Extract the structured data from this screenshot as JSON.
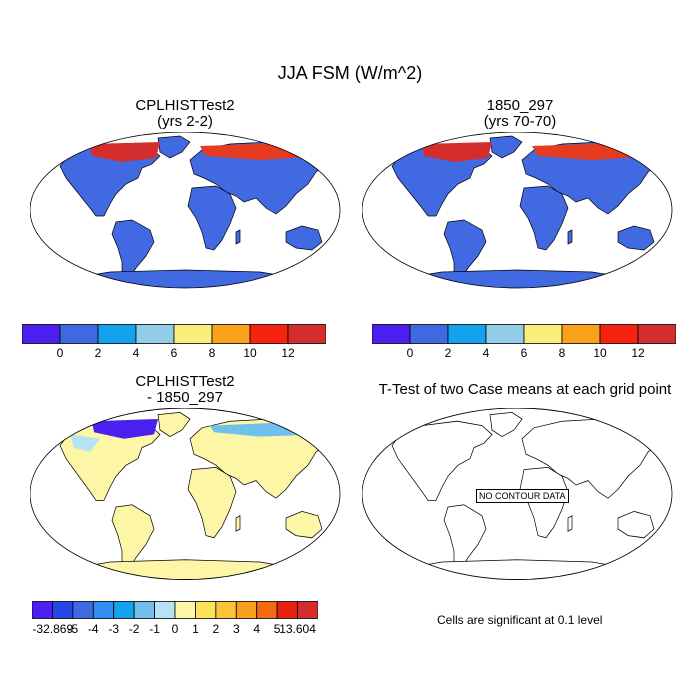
{
  "title": "JJA FSM (W/m^2)",
  "panels": [
    {
      "title_line1": "CPLHISTTest2",
      "title_line2": "(yrs 2-2)",
      "fill": "#4169e1"
    },
    {
      "title_line1": "1850_297",
      "title_line2": "(yrs 70-70)",
      "fill": "#4169e1"
    },
    {
      "title_line1": "CPLHISTTest2",
      "title_line2": "- 1850_297",
      "fill": "#fdf6a6"
    },
    {
      "title_line1": "T-Test of two Case means at each grid point",
      "title_line2": "",
      "fill": "#ffffff"
    }
  ],
  "colorbar_top": {
    "colors": [
      "#4a1ff0",
      "#3d6ae0",
      "#12a2ee",
      "#92cde8",
      "#f9ed7b",
      "#f9a11a",
      "#f5230f",
      "#d42d2d"
    ],
    "labels": [
      "0",
      "2",
      "4",
      "6",
      "8",
      "10",
      "12"
    ]
  },
  "colorbar_diff": {
    "colors": [
      "#4a1ff0",
      "#2845e6",
      "#3d6ae0",
      "#2f8ff0",
      "#12a2ee",
      "#6fc0ec",
      "#b6e2f4",
      "#fdf6a6",
      "#fbe25c",
      "#f9c33a",
      "#f99f1b",
      "#f26a12",
      "#e8200d",
      "#d42d2d"
    ],
    "labels": [
      "-32.869",
      "-5",
      "-4",
      "-3",
      "-2",
      "-1",
      "0",
      "1",
      "2",
      "3",
      "4",
      "5",
      "13.604"
    ]
  },
  "no_contour": "NO CONTOUR DATA",
  "significance": "Cells are significant at 0.1 level"
}
